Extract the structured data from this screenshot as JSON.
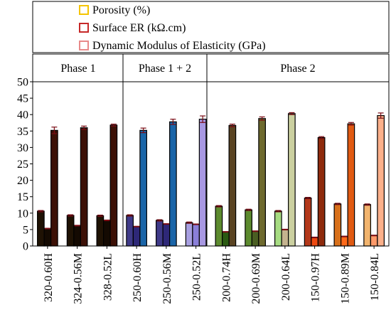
{
  "chart_data": {
    "type": "bar",
    "title": "",
    "xlabel": "",
    "ylabel": "",
    "ylim": [
      0,
      50
    ],
    "yticks": [
      0,
      5,
      10,
      15,
      20,
      25,
      30,
      35,
      40,
      45,
      50
    ],
    "grid": false,
    "legend_position": "top",
    "phases": [
      {
        "label": "Phase 1",
        "start": 0,
        "end": 2
      },
      {
        "label": "Phase 1 + 2",
        "start": 3,
        "end": 5
      },
      {
        "label": "Phase 2",
        "start": 6,
        "end": 11
      }
    ],
    "categories": [
      "320-0.60H",
      "324-0.56M",
      "328-0.52L",
      "250-0.60H",
      "250-0.56M",
      "250-0.52L",
      "200-0.74H",
      "200-0.69M",
      "200-0.64L",
      "150-0.97H",
      "150-0.89M",
      "150-0.84L"
    ],
    "series": [
      {
        "name": "Porosity (%)",
        "legend_color": "#f5c400",
        "values": [
          10.6,
          9.3,
          9.2,
          9.3,
          7.8,
          7.1,
          12.1,
          11.0,
          10.6,
          14.6,
          12.8,
          12.6
        ],
        "errors": [
          0.2,
          0.2,
          0.2,
          0.2,
          0.2,
          0.2,
          0.2,
          0.2,
          0.2,
          0.2,
          0.2,
          0.2
        ],
        "colors": [
          "#1f1204",
          "#1f1204",
          "#1f1204",
          "#3f3a88",
          "#3f3a88",
          "#a79fe0",
          "#5c8a2e",
          "#5c8a2e",
          "#a7dc82",
          "#b3381a",
          "#d8701a",
          "#f2b46e"
        ]
      },
      {
        "name": "Surface ER (kΩ.cm)",
        "legend_color": "#c62828",
        "values": [
          5.3,
          6.2,
          7.8,
          5.9,
          6.7,
          6.6,
          4.3,
          4.5,
          5.0,
          2.6,
          2.9,
          3.2
        ],
        "errors": [
          0.1,
          0.1,
          0.1,
          0.1,
          0.1,
          0.1,
          0.1,
          0.1,
          0.1,
          0.1,
          0.1,
          0.1
        ],
        "colors": [
          "#140a02",
          "#140a02",
          "#140a02",
          "#2e2878",
          "#2e2878",
          "#8a7fd8",
          "#2a5a12",
          "#4a5e22",
          "#c4b38f",
          "#ee4a12",
          "#ff6a1a",
          "#ff9a6a"
        ]
      },
      {
        "name": "Dynamic Modulus of Elasticity (GPa)",
        "legend_color": "#e88a8a",
        "values": [
          35.2,
          36.0,
          36.8,
          35.2,
          37.8,
          38.6,
          36.7,
          38.8,
          40.3,
          33.0,
          37.2,
          39.7
        ],
        "errors": [
          1.0,
          0.5,
          0.3,
          0.7,
          0.8,
          1.0,
          0.4,
          0.5,
          0.3,
          0.3,
          0.4,
          0.8
        ],
        "colors": [
          "#3c1006",
          "#3c1006",
          "#3c1006",
          "#1a65a8",
          "#1a65a8",
          "#a898e2",
          "#5a4422",
          "#6e6a2e",
          "#cbd0a0",
          "#8e2a0c",
          "#e05a12",
          "#fbb08a"
        ]
      }
    ]
  }
}
